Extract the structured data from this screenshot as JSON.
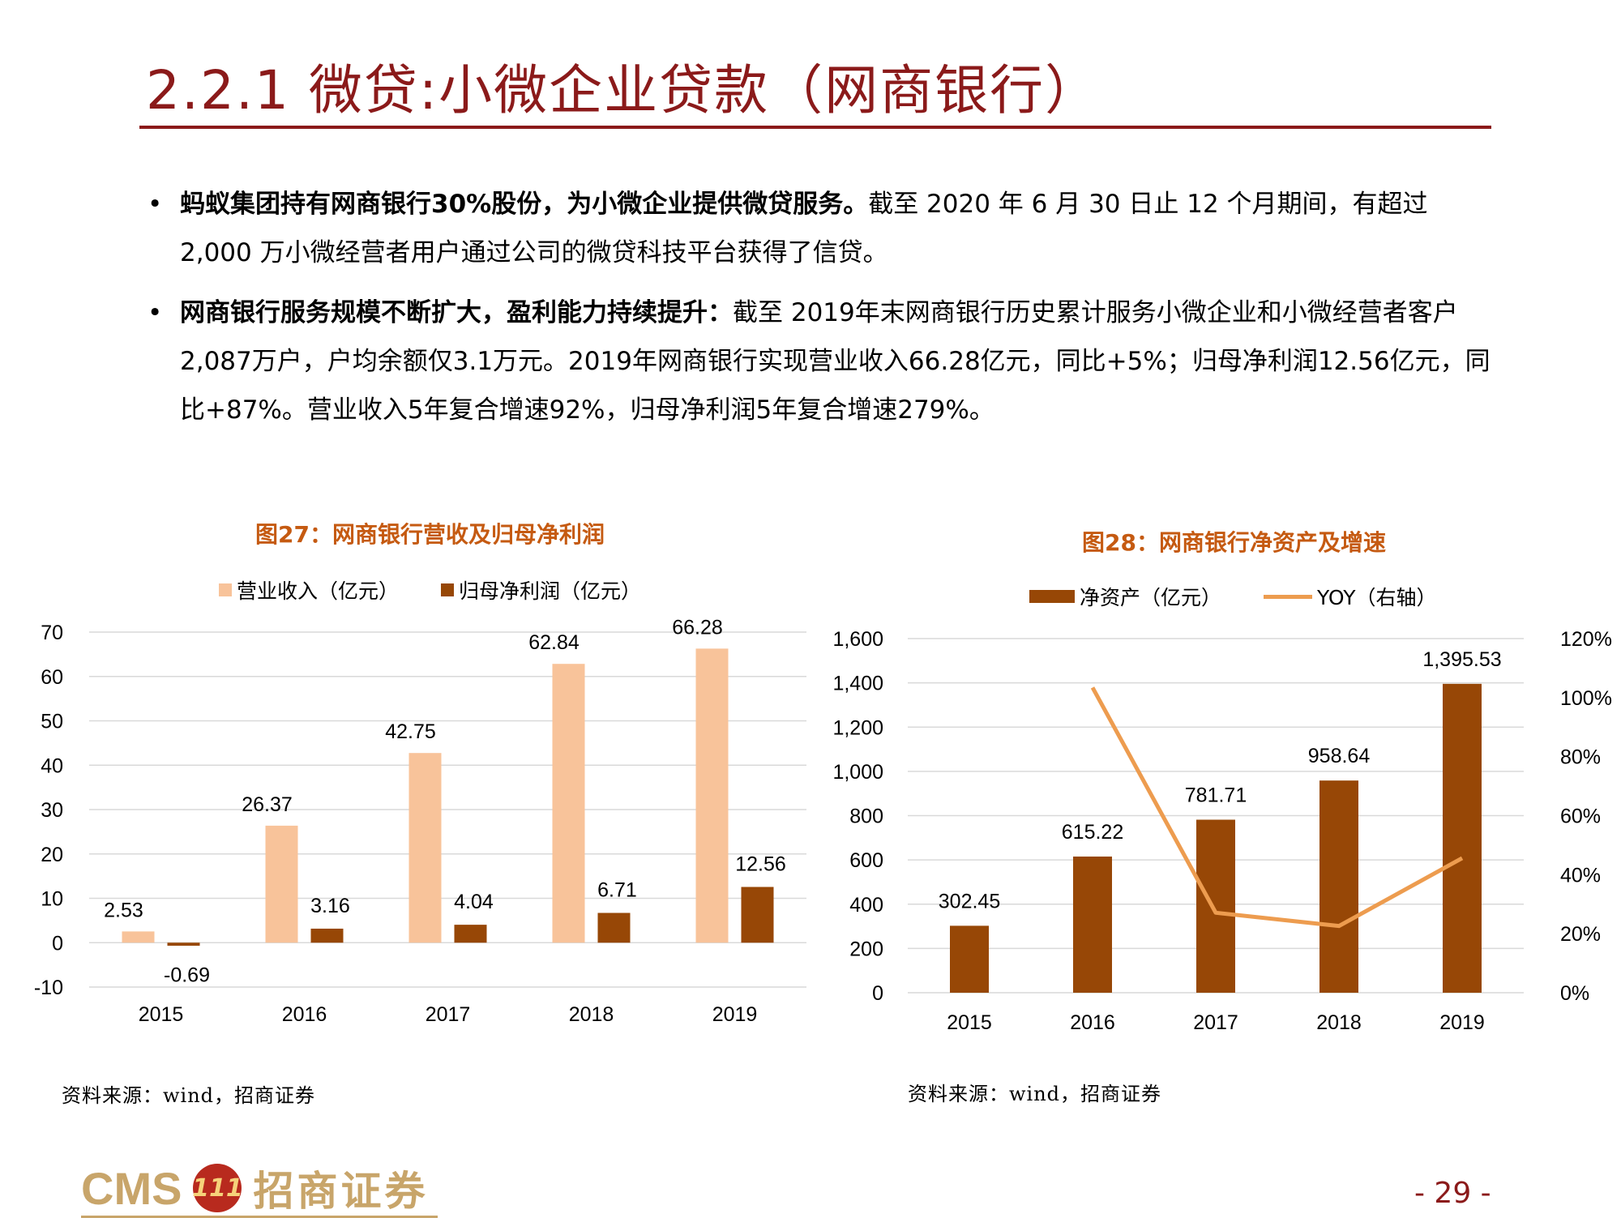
{
  "header": {
    "title": "2.2.1 微贷:小微企业贷款（网商银行）"
  },
  "bullets": [
    {
      "bold": "蚂蚁集团持有网商银行30%股份，为小微企业提供微贷服务。",
      "text": "截至 2020 年 6 月 30 日止 12 个月期间，有超过 2,000 万小微经营者用户通过公司的微贷科技平台获得了信贷。"
    },
    {
      "bold": "网商银行服务规模不断扩大，盈利能力持续提升：",
      "text": "截至 2019年末网商银行历史累计服务小微企业和小微经营者客户2,087万户，户均余额仅3.1万元。2019年网商银行实现营业收入66.28亿元，同比+5%；归母净利润12.56亿元，同比+87%。营业收入5年复合增速92%，归母净利润5年复合增速279%。"
    }
  ],
  "chart_data": [
    {
      "type": "bar",
      "title": "图27：网商银行营收及归母净利润",
      "categories": [
        "2015",
        "2016",
        "2017",
        "2018",
        "2019"
      ],
      "series": [
        {
          "name": "营业收入（亿元）",
          "values": [
            2.53,
            26.37,
            42.75,
            62.84,
            66.28
          ],
          "labels": [
            "2.53",
            "26.37",
            "42.75",
            "62.84",
            "66.28"
          ],
          "color": "#f8c39a"
        },
        {
          "name": "归母净利润（亿元）",
          "values": [
            -0.69,
            3.16,
            4.04,
            6.71,
            12.56
          ],
          "labels": [
            "-0.69",
            "3.16",
            "4.04",
            "6.71",
            "12.56"
          ],
          "color": "#974706"
        }
      ],
      "ylim": [
        -10,
        70
      ],
      "yticks": [
        -10,
        0,
        10,
        20,
        30,
        40,
        50,
        60,
        70
      ],
      "ytick_labels": [
        "-10",
        "0",
        "10",
        "20",
        "30",
        "40",
        "50",
        "60",
        "70"
      ],
      "grid": true,
      "legend": "top"
    },
    {
      "type": "bar+line",
      "title": "图28：网商银行净资产及增速",
      "categories": [
        "2015",
        "2016",
        "2017",
        "2018",
        "2019"
      ],
      "series": [
        {
          "name": "净资产（亿元）",
          "values": [
            302.45,
            615.22,
            781.71,
            958.64,
            1395.53
          ],
          "labels": [
            "302.45",
            "615.22",
            "781.71",
            "958.64",
            "1,395.53"
          ],
          "color": "#974706",
          "axis": "left"
        },
        {
          "name": "YOY（右轴）",
          "values": [
            null,
            103.4,
            27.1,
            22.6,
            45.6
          ],
          "color": "#ed9c4f",
          "axis": "right",
          "unit": "%"
        }
      ],
      "ylim": [
        0,
        1600
      ],
      "yticks": [
        0,
        200,
        400,
        600,
        800,
        1000,
        1200,
        1400,
        1600
      ],
      "ytick_labels": [
        "0",
        "200",
        "400",
        "600",
        "800",
        "1,000",
        "1,200",
        "1,400",
        "1,600"
      ],
      "y2lim": [
        0,
        120
      ],
      "y2ticks": [
        0,
        20,
        40,
        60,
        80,
        100,
        120
      ],
      "y2tick_labels": [
        "0%",
        "20%",
        "40%",
        "60%",
        "80%",
        "100%",
        "120%"
      ],
      "grid": true,
      "legend": "top"
    }
  ],
  "sources": {
    "left": "资料来源：wind，招商证券",
    "right": "资料来源：wind，招商证券"
  },
  "footer": {
    "logo_text": "CMS",
    "logo_emblem": "111",
    "logo_cn": "招商证券",
    "page": "- 29 -"
  },
  "colors": {
    "accent": "#8b1a1a",
    "chart_title": "#c55a11",
    "revenue": "#f8c39a",
    "profit": "#974706",
    "yoy": "#ed9c4f"
  }
}
